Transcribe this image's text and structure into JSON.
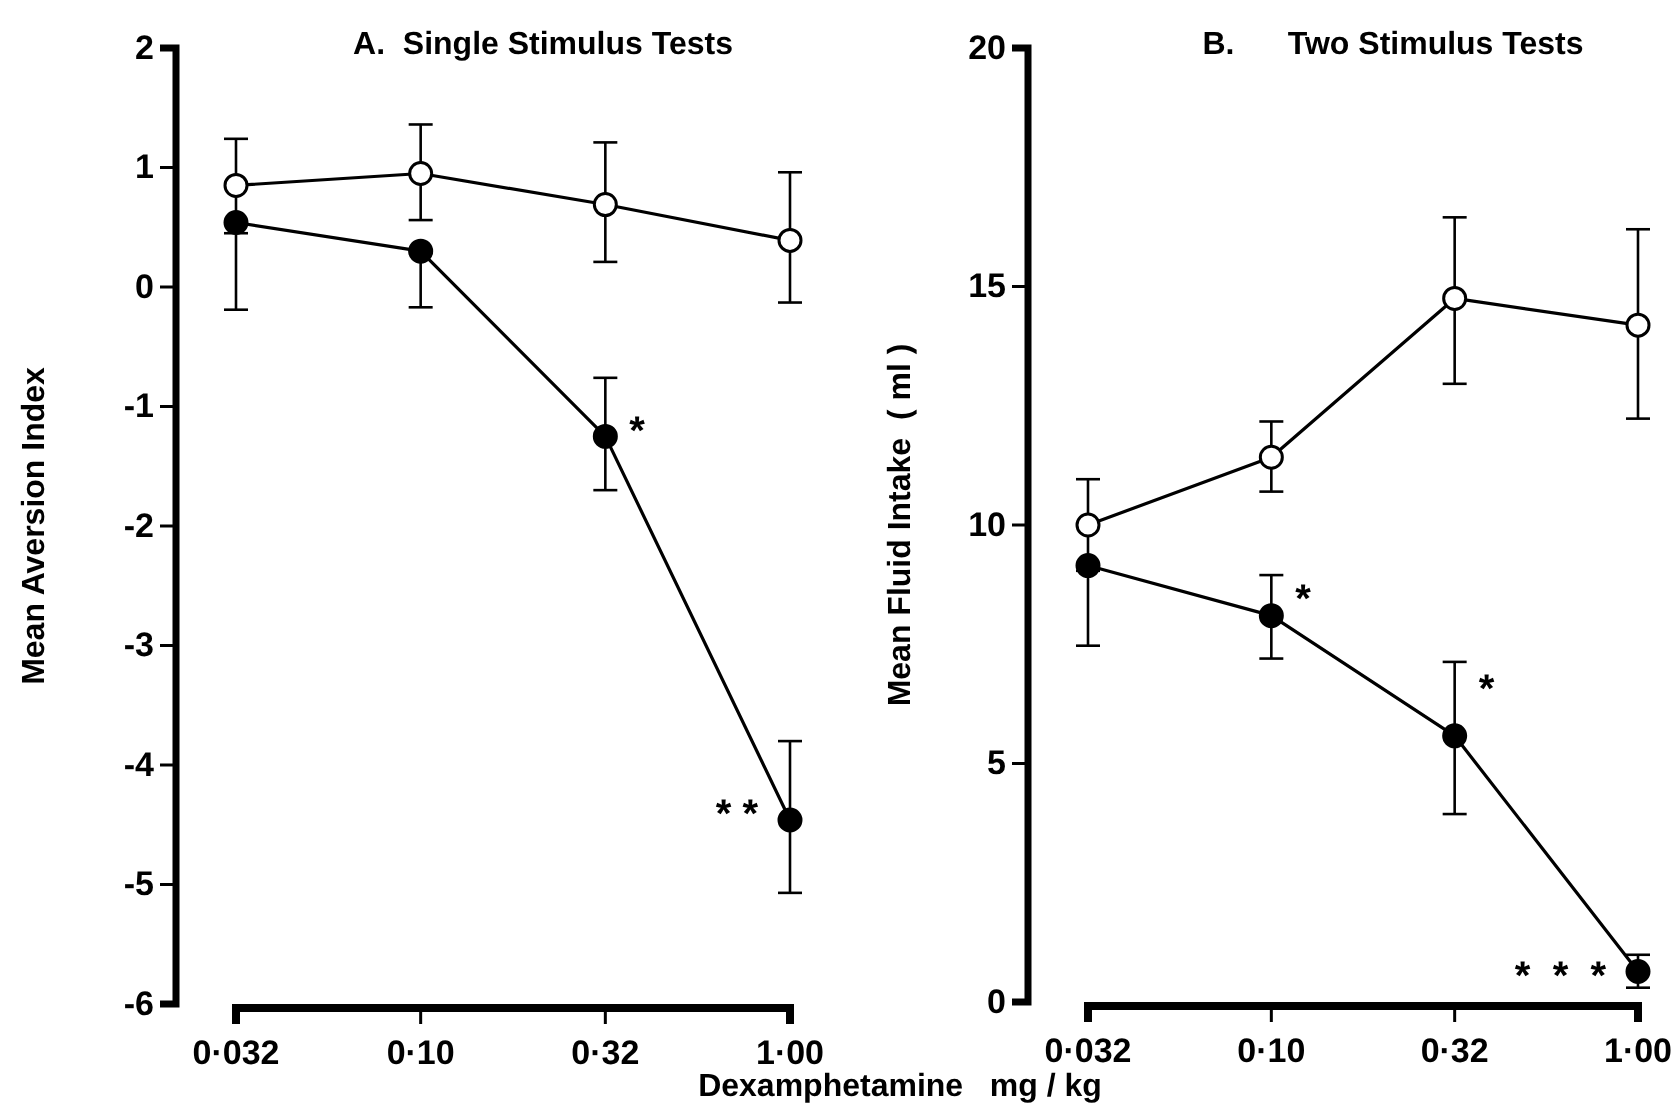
{
  "chart_data": [
    {
      "type": "line",
      "title": "A.  Single Stimulus Tests",
      "ylabel": "Mean Aversion Index",
      "xlabel": "Dexamphetamine   mg / kg",
      "categories": [
        "0·032",
        "0·10",
        "0·32",
        "1·00"
      ],
      "ylim": [
        -6,
        2
      ],
      "yticks": [
        -6,
        -5,
        -4,
        -3,
        -2,
        -1,
        0,
        1,
        2
      ],
      "marker": "circle",
      "line_style": "solid",
      "grid": false,
      "series": [
        {
          "color": "#ffffff",
          "values": [
            0.85,
            0.95,
            0.69,
            0.39
          ],
          "errors": [
            [
              0.45,
              1.24
            ],
            [
              0.56,
              1.36
            ],
            [
              0.21,
              1.21
            ],
            [
              -0.13,
              0.96
            ]
          ]
        },
        {
          "color": "#000000",
          "values": [
            0.54,
            0.3,
            -1.25,
            -4.46
          ],
          "errors": [
            [
              -0.19,
              0.54
            ],
            [
              -0.17,
              0.3
            ],
            [
              -1.7,
              -0.76
            ],
            [
              -5.07,
              -3.8
            ]
          ]
        }
      ],
      "annotations": [
        {
          "text": "*",
          "x": "0·32",
          "y": -1.15
        },
        {
          "text": "* *",
          "x": "1·00",
          "y": -4.35
        }
      ]
    },
    {
      "type": "line",
      "title": "B.      Two Stimulus Tests",
      "ylabel": "Mean Fluid Intake  ( ml )",
      "categories": [
        "0·032",
        "0·10",
        "0·32",
        "1·00"
      ],
      "ylim": [
        0,
        20
      ],
      "yticks": [
        0,
        5,
        10,
        15,
        20
      ],
      "marker": "circle",
      "line_style": "solid",
      "grid": false,
      "series": [
        {
          "color": "#ffffff",
          "values": [
            10.0,
            11.42,
            14.75,
            14.19
          ],
          "errors": [
            [
              9.04,
              10.96
            ],
            [
              10.7,
              12.17
            ],
            [
              12.96,
              16.45
            ],
            [
              12.23,
              16.2
            ]
          ]
        },
        {
          "color": "#000000",
          "values": [
            9.15,
            8.1,
            5.58,
            0.64
          ],
          "errors": [
            [
              7.47,
              9.15
            ],
            [
              7.2,
              8.95
            ],
            [
              3.94,
              7.13
            ],
            [
              0.3,
              0.99
            ]
          ]
        }
      ],
      "annotations": [
        {
          "text": "*",
          "x": "0·10",
          "y": 8.6
        },
        {
          "text": "*",
          "x": "0·32",
          "y": 6.7
        },
        {
          "text": "*  *  *",
          "x": "1·00",
          "y": 0.7
        }
      ]
    }
  ]
}
